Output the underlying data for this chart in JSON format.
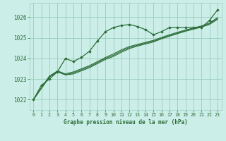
{
  "bg_color": "#cceee8",
  "grid_color": "#99ccbb",
  "line_color": "#2d6e3a",
  "title": "Graphe pression niveau de la mer (hPa)",
  "xlim": [
    -0.5,
    23.5
  ],
  "ylim": [
    1021.5,
    1026.7
  ],
  "yticks": [
    1022,
    1023,
    1024,
    1025,
    1026
  ],
  "xticks": [
    0,
    1,
    2,
    3,
    4,
    5,
    6,
    7,
    8,
    9,
    10,
    11,
    12,
    13,
    14,
    15,
    16,
    17,
    18,
    19,
    20,
    21,
    22,
    23
  ],
  "series1_x": [
    0,
    1,
    2,
    3,
    4,
    5,
    6,
    7,
    8,
    9,
    10,
    11,
    12,
    13,
    14,
    15,
    16,
    17,
    18,
    19,
    20,
    21,
    22,
    23
  ],
  "series1_y": [
    1022.0,
    1022.7,
    1023.0,
    1023.35,
    1024.0,
    1023.85,
    1024.05,
    1024.35,
    1024.85,
    1025.3,
    1025.5,
    1025.6,
    1025.65,
    1025.55,
    1025.4,
    1025.15,
    1025.3,
    1025.5,
    1025.5,
    1025.5,
    1025.5,
    1025.5,
    1025.85,
    1026.35
  ],
  "series2_x": [
    0,
    2,
    3,
    4,
    5,
    6,
    7,
    8,
    9,
    10,
    11,
    12,
    13,
    14,
    15,
    16,
    17,
    18,
    19,
    20,
    21,
    22,
    23
  ],
  "series2_y": [
    1022.0,
    1023.1,
    1023.35,
    1023.2,
    1023.25,
    1023.4,
    1023.55,
    1023.75,
    1023.95,
    1024.1,
    1024.3,
    1024.48,
    1024.6,
    1024.7,
    1024.8,
    1024.95,
    1025.08,
    1025.2,
    1025.32,
    1025.42,
    1025.52,
    1025.65,
    1025.9
  ],
  "series3_x": [
    0,
    2,
    3,
    4,
    5,
    6,
    7,
    8,
    9,
    10,
    11,
    12,
    13,
    14,
    15,
    16,
    17,
    18,
    19,
    20,
    21,
    22,
    23
  ],
  "series3_y": [
    1022.0,
    1023.1,
    1023.4,
    1023.25,
    1023.35,
    1023.5,
    1023.65,
    1023.85,
    1024.05,
    1024.22,
    1024.42,
    1024.58,
    1024.68,
    1024.78,
    1024.88,
    1025.02,
    1025.15,
    1025.27,
    1025.38,
    1025.48,
    1025.58,
    1025.72,
    1025.98
  ],
  "series4_x": [
    0,
    2,
    3,
    4,
    5,
    6,
    7,
    8,
    9,
    10,
    11,
    12,
    13,
    14,
    15,
    16,
    17,
    18,
    19,
    20,
    21,
    22,
    23
  ],
  "series4_y": [
    1022.0,
    1023.15,
    1023.38,
    1023.22,
    1023.3,
    1023.45,
    1023.6,
    1023.8,
    1024.0,
    1024.16,
    1024.36,
    1024.53,
    1024.64,
    1024.74,
    1024.84,
    1024.98,
    1025.11,
    1025.23,
    1025.35,
    1025.45,
    1025.55,
    1025.68,
    1025.94
  ]
}
